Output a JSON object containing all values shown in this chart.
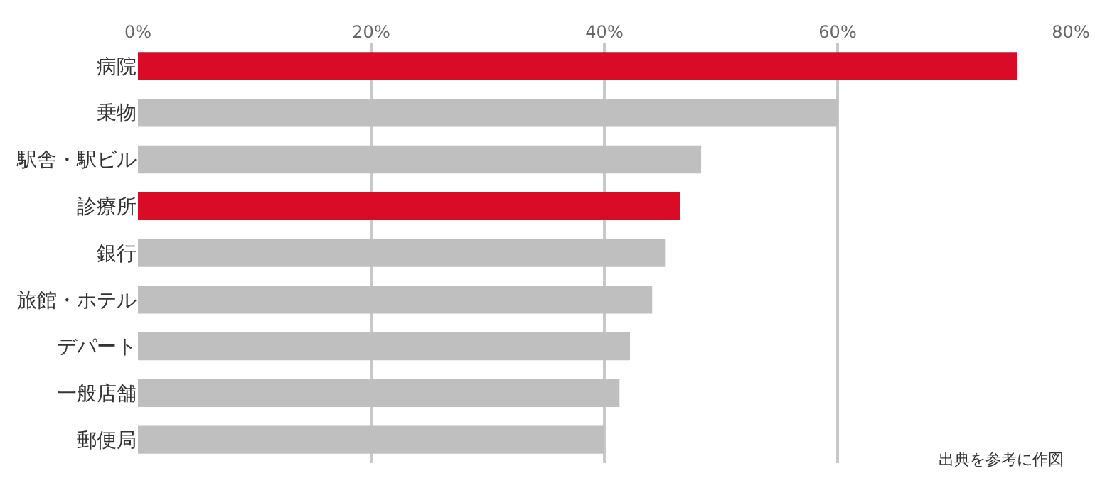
{
  "chart_data": {
    "type": "bar",
    "orientation": "horizontal",
    "categories": [
      "病院",
      "乗物",
      "駅舎・駅ビル",
      "診療所",
      "銀行",
      "旅館・ホテル",
      "デパート",
      "一般店舗",
      "郵便局"
    ],
    "values": [
      75.4,
      60,
      48.3,
      46.5,
      45.2,
      44.1,
      42.2,
      41.3,
      40
    ],
    "colors": [
      "#d90b26",
      "#bfbfbf",
      "#bfbfbf",
      "#d90b26",
      "#bfbfbf",
      "#bfbfbf",
      "#bfbfbf",
      "#bfbfbf",
      "#bfbfbf"
    ],
    "xlim": [
      0,
      80
    ],
    "xticks": [
      {
        "value": 0,
        "label": "0%"
      },
      {
        "value": 20,
        "label": "20%"
      },
      {
        "value": 40,
        "label": "40%"
      },
      {
        "value": 60,
        "label": "60%"
      },
      {
        "value": 80,
        "label": "80%"
      }
    ],
    "grid": "x",
    "annotations": [
      "出典を参考に作図"
    ]
  }
}
